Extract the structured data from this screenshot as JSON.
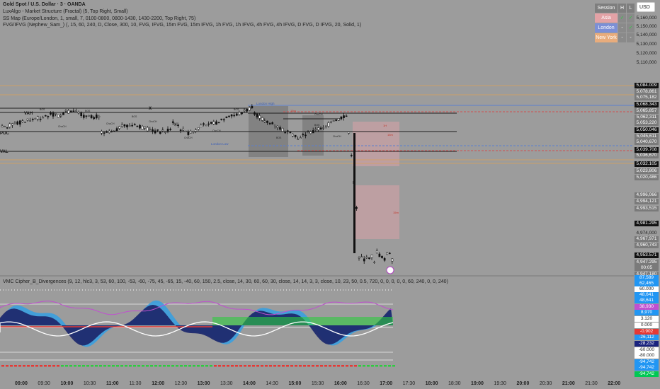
{
  "legend": {
    "main": "Gold Spot / U.S. Dollar · 3 · OANDA",
    "luxalgo": "LuxAlgo - Market Structure (Fractal) (5, Top Right, Small)",
    "ssmap": "SS Map (Europe/London, 1, small, 7, 0100-0800, 0800-1430, 1430-2200, Top Right, 75)",
    "fvg": "FVG/IFVG (Nephew_Sam_) (, 15, 60, 240, D, Close, 300, 10, FVG, IFVG, 15m FVG, 15m IFVG, 1h FVG, 1h IFVG, 4h FVG, 4h IFVG, D FVG, D IFVG, 20, Solid, 1)",
    "indicator": "VMC Cipher_B_Divergences (9, 12, hlc3, 3, 53, 60, 100, -53, -60, -75, 45, -65, 15, -40, 60, 150, 2.5, close, 14, 30, 60, 60, 30, close, 14, 14, 3, 3, close, 10, 23, 50, 0.5, 720, 0, 0, 0, 0, 0, 60, 240, 0, 0, 240)"
  },
  "currency_button": "USD",
  "session_table": {
    "header": {
      "name": "Session",
      "h": "H",
      "l": "L"
    },
    "rows": [
      {
        "name": "Asia",
        "h": "✓",
        "l": "✓",
        "color": "#e3a2a6"
      },
      {
        "name": "London",
        "h": "-",
        "l": "✓",
        "color": "#7c8fd6"
      },
      {
        "name": "New York",
        "h": "-",
        "l": "-",
        "color": "#e8ac7c"
      }
    ]
  },
  "price_axis": {
    "ticks": [
      "5,160,000",
      "5,150,000",
      "5,140,000",
      "5,130,000",
      "5,120,000",
      "5,110,000",
      "4,996,000",
      "4,974,000"
    ],
    "labels": [
      {
        "text": "5,084.009",
        "bg": "#111111"
      },
      {
        "text": "5,078,861",
        "bg": "#7a7a7a"
      },
      {
        "text": "5,075,182",
        "bg": "#7a7a7a"
      },
      {
        "text": "5,068.343",
        "bg": "#111111"
      },
      {
        "text": "5,065,857",
        "bg": "#7a7a7a"
      },
      {
        "text": "5,062,311",
        "bg": "#7a7a7a"
      },
      {
        "text": "5,053,220",
        "bg": "#7a7a7a"
      },
      {
        "text": "5,050.046",
        "bg": "#111111"
      },
      {
        "text": "5,045,611",
        "bg": "#7a7a7a"
      },
      {
        "text": "5,040,670",
        "bg": "#7a7a7a"
      },
      {
        "text": "5,039.708",
        "bg": "#111111"
      },
      {
        "text": "5,036,670",
        "bg": "#7a7a7a"
      },
      {
        "text": "5,032.105",
        "bg": "#111111"
      },
      {
        "text": "5,023,806",
        "bg": "#7a7a7a"
      },
      {
        "text": "5,020,486",
        "bg": "#7a7a7a"
      },
      {
        "text": "4,996,066",
        "bg": "#7a7a7a"
      },
      {
        "text": "4,994,121",
        "bg": "#7a7a7a"
      },
      {
        "text": "4,993,515",
        "bg": "#7a7a7a"
      },
      {
        "text": "4,981.295",
        "bg": "#111111"
      },
      {
        "text": "4,967,971",
        "bg": "#7a7a7a"
      },
      {
        "text": "4,960,743",
        "bg": "#7a7a7a"
      },
      {
        "text": "4,953.571",
        "bg": "#111111"
      },
      {
        "text": "4,947.295",
        "bg": "#7a7a7a"
      },
      {
        "text": "00:05",
        "bg": "#7a7a7a"
      },
      {
        "text": "4,947,180",
        "bg": "#7a7a7a"
      }
    ]
  },
  "indicator_axis": {
    "labels": [
      {
        "text": "87,589",
        "bg": "#2196f3",
        "fg": "#ffffff"
      },
      {
        "text": "62,465",
        "bg": "#2196f3",
        "fg": "#ffffff"
      },
      {
        "text": "60.000",
        "bg": "#ffffff",
        "fg": "#222222"
      },
      {
        "text": "48,641",
        "bg": "#2196f3",
        "fg": "#ffffff"
      },
      {
        "text": "48,641",
        "bg": "#2196f3",
        "fg": "#ffffff"
      },
      {
        "text": "38,930",
        "bg": "#c050d0",
        "fg": "#ffffff"
      },
      {
        "text": "8,970",
        "bg": "#2196f3",
        "fg": "#ffffff"
      },
      {
        "text": "3.120",
        "bg": "#ffffff",
        "fg": "#222222"
      },
      {
        "text": "0.000",
        "bg": "#ffffff",
        "fg": "#222222"
      },
      {
        "text": "-0.902",
        "bg": "#e53935",
        "fg": "#ffffff"
      },
      {
        "text": "-26,112",
        "bg": "#2196f3",
        "fg": "#ffffff"
      },
      {
        "text": "-28,232",
        "bg": "#1a237e",
        "fg": "#ffffff"
      },
      {
        "text": "-60.000",
        "bg": "#ffffff",
        "fg": "#222222"
      },
      {
        "text": "-80.000",
        "bg": "#ffffff",
        "fg": "#222222"
      },
      {
        "text": "-94,742",
        "bg": "#2196f3",
        "fg": "#ffffff"
      },
      {
        "text": "-94,742",
        "bg": "#2196f3",
        "fg": "#ffffff"
      },
      {
        "text": "-94,742",
        "bg": "#00c853",
        "fg": "#ffffff"
      }
    ]
  },
  "time_axis": [
    {
      "t": "09:00",
      "bold": true
    },
    {
      "t": "09:30",
      "bold": false
    },
    {
      "t": "10:00",
      "bold": true
    },
    {
      "t": "10:30",
      "bold": false
    },
    {
      "t": "11:00",
      "bold": true
    },
    {
      "t": "11:30",
      "bold": false
    },
    {
      "t": "12:00",
      "bold": true
    },
    {
      "t": "12:30",
      "bold": false
    },
    {
      "t": "13:00",
      "bold": true
    },
    {
      "t": "13:30",
      "bold": false
    },
    {
      "t": "14:00",
      "bold": true
    },
    {
      "t": "14:30",
      "bold": false
    },
    {
      "t": "15:00",
      "bold": true
    },
    {
      "t": "15:30",
      "bold": false
    },
    {
      "t": "16:00",
      "bold": true
    },
    {
      "t": "16:30",
      "bold": false
    },
    {
      "t": "17:00",
      "bold": true
    },
    {
      "t": "17:30",
      "bold": false
    },
    {
      "t": "18:00",
      "bold": true
    },
    {
      "t": "18:30",
      "bold": false
    },
    {
      "t": "19:00",
      "bold": true
    },
    {
      "t": "19:30",
      "bold": false
    },
    {
      "t": "20:00",
      "bold": true
    },
    {
      "t": "20:30",
      "bold": false
    },
    {
      "t": "21:00",
      "bold": true
    },
    {
      "t": "21:30",
      "bold": false
    },
    {
      "t": "22:00",
      "bold": true
    }
  ],
  "chart_labels": {
    "vah": "VAH",
    "poc": "POC",
    "val": "VAL",
    "x_mark": "X",
    "london_high": "London High",
    "london_low": "London Low",
    "bos": "BOS",
    "choch": "ChoCH",
    "fvg_15": "15m",
    "fvg_1h": "1H"
  },
  "colors": {
    "background": "#9c9c9c",
    "candle": "#111111",
    "fvg_zone": "#d8a3a8",
    "orange_line": "#d6a060",
    "blue_line": "#5a7fd0",
    "red_dash": "#d05050",
    "wave_dark": "#1f2a6e",
    "wave_light": "#3aa0e0",
    "vwap": "#ffffff",
    "mf_green": "#2ecc40",
    "mf_red": "#e53935",
    "rsi_pink": "#c050d0"
  }
}
